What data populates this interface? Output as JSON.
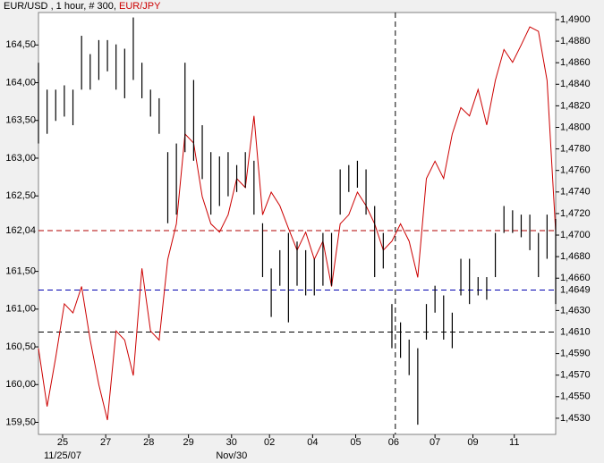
{
  "chart_data": {
    "type": "bar-line",
    "title": " , 1 hour, # 300, ",
    "x": [
      0,
      5,
      10,
      15,
      20,
      25,
      30,
      35,
      40,
      45,
      50,
      55,
      60,
      65,
      70,
      75,
      80,
      85,
      90,
      95,
      100,
      105,
      110,
      115,
      120,
      125,
      130,
      135,
      140,
      145,
      150,
      155,
      160,
      165,
      170,
      175,
      180,
      185,
      190,
      195,
      200,
      205,
      210,
      215,
      220,
      225,
      230,
      235,
      240,
      245,
      250,
      255,
      260,
      265,
      270,
      275,
      280,
      285,
      290,
      295,
      300
    ],
    "xlim": [
      0,
      300
    ],
    "xticks": [
      {
        "value": 14,
        "label": "25"
      },
      {
        "value": 39,
        "label": "27"
      },
      {
        "value": 64,
        "label": "28"
      },
      {
        "value": 87,
        "label": "29"
      },
      {
        "value": 112,
        "label": "30"
      },
      {
        "value": 134,
        "label": "02"
      },
      {
        "value": 159,
        "label": "04"
      },
      {
        "value": 184,
        "label": "05"
      },
      {
        "value": 206,
        "label": "06"
      },
      {
        "value": 230,
        "label": "07"
      },
      {
        "value": 252,
        "label": "09"
      },
      {
        "value": 276,
        "label": "11"
      }
    ],
    "x_sublabels": [
      {
        "value": 14,
        "label": "11/25/07"
      },
      {
        "value": 112,
        "label": "Nov/30"
      }
    ],
    "ylim": [
      159.34,
      164.93
    ],
    "yticks": [
      {
        "value": 164.5,
        "label": "164,50"
      },
      {
        "value": 164,
        "label": "164,00"
      },
      {
        "value": 163.5,
        "label": "163,50"
      },
      {
        "value": 163,
        "label": "163,00"
      },
      {
        "value": 162.5,
        "label": "162,50"
      },
      {
        "value": 161.5,
        "label": "161,50"
      },
      {
        "value": 161,
        "label": "161,00"
      },
      {
        "value": 160.5,
        "label": "160,50"
      },
      {
        "value": 160,
        "label": "160,00"
      },
      {
        "value": 159.5,
        "label": "159,50"
      }
    ],
    "y2lim": [
      1.4515,
      1.49066
    ],
    "y2ticks": [
      {
        "value": 1.49,
        "label": "1,4900"
      },
      {
        "value": 1.488,
        "label": "1,4880"
      },
      {
        "value": 1.486,
        "label": "1,4860"
      },
      {
        "value": 1.484,
        "label": "1,4840"
      },
      {
        "value": 1.482,
        "label": "1,4820"
      },
      {
        "value": 1.48,
        "label": "1,4800"
      },
      {
        "value": 1.478,
        "label": "1,4780"
      },
      {
        "value": 1.476,
        "label": "1,4760"
      },
      {
        "value": 1.474,
        "label": "1,4740"
      },
      {
        "value": 1.472,
        "label": "1,4720"
      },
      {
        "value": 1.47,
        "label": "1,4700"
      },
      {
        "value": 1.468,
        "label": "1,4680"
      },
      {
        "value": 1.466,
        "label": "1,4660"
      },
      {
        "value": 1.463,
        "label": "1,4630"
      },
      {
        "value": 1.459,
        "label": "1,4590"
      },
      {
        "value": 1.457,
        "label": "1,4570"
      },
      {
        "value": 1.455,
        "label": "1,4550"
      },
      {
        "value": 1.453,
        "label": "1,4530"
      }
    ],
    "hlines": [
      {
        "value": 162.04,
        "label": "162,04",
        "axis": "y",
        "color": "#b00000",
        "label_color": "#b00000"
      },
      {
        "value": 1.4649,
        "label": "1,4649",
        "axis": "y2",
        "color": "#0000b0",
        "label_color": "#0000b0"
      },
      {
        "value": 1.461,
        "label": "1,4610",
        "axis": "y2",
        "color": "#000000",
        "label_color": "#0000b0"
      }
    ],
    "vline": 207,
    "series": [
      {
        "name": "EUR/JPY",
        "color": "#cc0000",
        "axis": "y",
        "values": [
          160.48,
          159.71,
          160.36,
          161.07,
          160.95,
          161.3,
          160.59,
          160.0,
          159.53,
          160.71,
          160.59,
          160.12,
          161.54,
          160.71,
          160.59,
          161.66,
          162.13,
          163.32,
          163.2,
          162.49,
          162.13,
          162.02,
          162.25,
          162.73,
          162.61,
          163.56,
          162.25,
          162.55,
          162.37,
          162.07,
          161.78,
          162.02,
          161.66,
          161.9,
          161.3,
          162.13,
          162.25,
          162.55,
          162.37,
          162.13,
          161.78,
          161.9,
          162.13,
          161.9,
          161.42,
          162.73,
          162.96,
          162.73,
          163.32,
          163.67,
          163.56,
          163.91,
          163.44,
          164.03,
          164.44,
          164.27,
          164.5,
          164.74,
          164.68,
          164.03,
          162.02
        ]
      },
      {
        "name": "EUR/USD",
        "color": "#000000",
        "axis": "y2",
        "high": [
          1.486,
          1.4835,
          1.4835,
          1.4839,
          1.4835,
          1.4885,
          1.4868,
          1.4881,
          1.4881,
          1.4877,
          1.4873,
          1.4902,
          1.486,
          1.4835,
          1.4827,
          1.4777,
          1.4785,
          1.486,
          1.4844,
          1.4802,
          1.4777,
          1.4773,
          1.4777,
          1.4765,
          1.4777,
          1.4769,
          1.4711,
          1.4669,
          1.4686,
          1.4702,
          1.4694,
          1.4686,
          1.4678,
          1.4702,
          1.4702,
          1.4761,
          1.4765,
          1.4769,
          1.4761,
          1.4727,
          1.4702,
          1.4636,
          1.4619,
          1.4603,
          1.4595,
          1.4636,
          1.4653,
          1.4644,
          1.4628,
          1.4678,
          1.4678,
          1.4661,
          1.4661,
          1.4702,
          1.4727,
          1.4723,
          1.4719,
          1.4719,
          1.4702,
          1.4719,
          1.4715
        ],
        "low": [
          1.4785,
          1.4794,
          1.4806,
          1.481,
          1.4802,
          1.4835,
          1.4835,
          1.4844,
          1.4852,
          1.4835,
          1.4827,
          1.4844,
          1.4827,
          1.481,
          1.4794,
          1.4711,
          1.4719,
          1.4777,
          1.4769,
          1.4752,
          1.4719,
          1.4727,
          1.4736,
          1.474,
          1.4744,
          1.4719,
          1.4661,
          1.4624,
          1.4653,
          1.4619,
          1.4653,
          1.4644,
          1.4644,
          1.4653,
          1.4653,
          1.4719,
          1.474,
          1.4744,
          1.4719,
          1.4661,
          1.4669,
          1.4595,
          1.4586,
          1.457,
          1.4524,
          1.4603,
          1.4628,
          1.4603,
          1.4595,
          1.4644,
          1.4636,
          1.4644,
          1.464,
          1.4661,
          1.4702,
          1.4702,
          1.4698,
          1.4686,
          1.4661,
          1.4678,
          1.4636
        ]
      }
    ]
  }
}
